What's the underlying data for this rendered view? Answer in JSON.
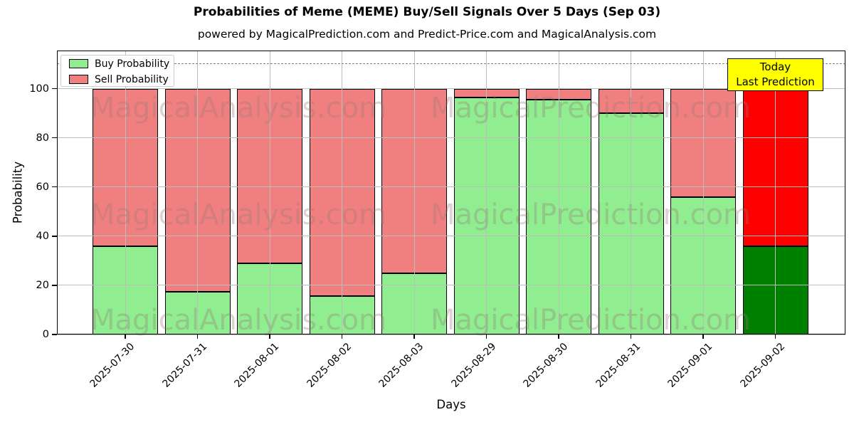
{
  "title": "Probabilities of Meme (MEME) Buy/Sell Signals Over 5 Days (Sep 03)",
  "subtitle": "powered by MagicalPrediction.com and Predict-Price.com and MagicalAnalysis.com",
  "axes": {
    "xlabel": "Days",
    "ylabel": "Probability"
  },
  "legend": {
    "buy_label": "Buy Probability",
    "sell_label": "Sell Probability"
  },
  "annotation": {
    "line1": "Today",
    "line2": "Last Prediction"
  },
  "watermarks": {
    "left": "MagicalAnalysis.com",
    "right": "MagicalPrediction.com"
  },
  "colors": {
    "buy": "#90EE90",
    "sell": "#F08080",
    "today_buy": "#008000",
    "today_sell": "#FF0000",
    "annotation_bg": "#FFFF00",
    "grid": "#bdbdbd",
    "dashed_line": "#7f7f7f"
  },
  "chart_data": {
    "type": "bar",
    "stacked": true,
    "title": "Probabilities of Meme (MEME) Buy/Sell Signals Over 5 Days (Sep 03)",
    "xlabel": "Days",
    "ylabel": "Probability",
    "categories": [
      "2025-07-30",
      "2025-07-31",
      "2025-08-01",
      "2025-08-02",
      "2025-08-03",
      "2025-08-29",
      "2025-08-30",
      "2025-08-31",
      "2025-09-01",
      "2025-09-02"
    ],
    "series": [
      {
        "name": "Buy Probability",
        "color": "#90EE90",
        "values": [
          36,
          17.5,
          29,
          15.5,
          25,
          96.5,
          95.5,
          90,
          56,
          36
        ]
      },
      {
        "name": "Sell Probability",
        "color": "#F08080",
        "values": [
          64,
          82.5,
          71,
          84.5,
          75,
          3.5,
          4.5,
          10,
          44,
          64
        ]
      }
    ],
    "today_index": 9,
    "today_colors": {
      "buy": "#008000",
      "sell": "#FF0000"
    },
    "yticks": [
      0,
      20,
      40,
      60,
      80,
      100
    ],
    "ylim": [
      0,
      115.5
    ],
    "dashed_line_y": 110,
    "grid": true,
    "legend_position": "upper left"
  }
}
